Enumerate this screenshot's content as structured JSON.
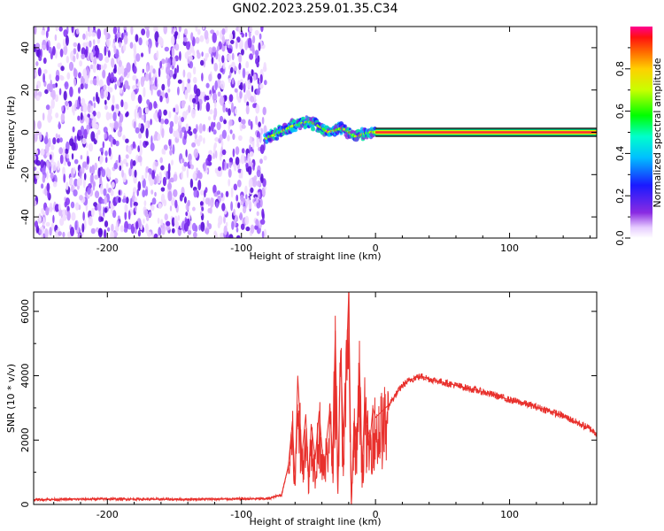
{
  "title": "GN02.2023.259.01.35.C34",
  "chart_data": [
    {
      "type": "heatmap",
      "xlabel": "Height of straight line (km)",
      "ylabel": "Frequency (Hz)",
      "xlim": [
        -255,
        165
      ],
      "ylim": [
        -50,
        50
      ],
      "xticks": [
        -200,
        -100,
        0,
        100
      ],
      "yticks": [
        -40,
        -20,
        0,
        20,
        40
      ],
      "colorbar": {
        "label": "Normalized spectral amplitude",
        "range": [
          0,
          1
        ],
        "ticks": [
          0.0,
          0.2,
          0.4,
          0.6,
          0.8
        ],
        "colormap": "rainbow"
      },
      "noise_region_x": [
        -255,
        -82
      ],
      "tone_track": {
        "x": [
          -82,
          -75,
          -68,
          -62,
          -56,
          -50,
          -45,
          -40,
          -35,
          -30,
          -25,
          -20,
          -15,
          -10,
          -5,
          0,
          165
        ],
        "frequency": [
          -3,
          -1,
          1,
          3,
          4,
          5,
          4,
          2,
          0,
          1,
          2,
          0,
          -2,
          -1,
          0,
          0,
          0
        ]
      }
    },
    {
      "type": "line",
      "xlabel": "Height of straight line (km)",
      "ylabel": "SNR (10 * v/v)",
      "xlim": [
        -255,
        165
      ],
      "ylim": [
        0,
        6600
      ],
      "xticks": [
        -200,
        -100,
        0,
        100
      ],
      "yticks": [
        0,
        2000,
        4000,
        6000
      ],
      "color": "#e8302c",
      "series": [
        {
          "x": [
            -255,
            -200,
            -150,
            -100,
            -80,
            -70,
            -65,
            -62,
            -60,
            -58,
            -55,
            -52,
            -50,
            -48,
            -45,
            -42,
            -40,
            -38,
            -36,
            -34,
            -32,
            -30,
            -28,
            -26,
            -24,
            -22,
            -20,
            -18,
            -16,
            -14,
            -12,
            -10,
            -8,
            -6,
            -4,
            -2,
            0,
            5,
            10,
            15,
            20,
            25,
            30,
            35,
            40,
            50,
            60,
            70,
            80,
            90,
            100,
            110,
            120,
            130,
            140,
            150,
            160,
            165
          ],
          "y": [
            150,
            170,
            160,
            170,
            180,
            300,
            1200,
            2600,
            600,
            4000,
            1500,
            2800,
            800,
            2500,
            1400,
            2900,
            1800,
            1100,
            2200,
            3000,
            1400,
            5400,
            800,
            4800,
            2100,
            4000,
            6600,
            0,
            2600,
            1800,
            4400,
            1100,
            3200,
            2400,
            2000,
            3000,
            2700,
            2900,
            3100,
            3400,
            3700,
            3850,
            3950,
            3980,
            3900,
            3800,
            3700,
            3600,
            3500,
            3380,
            3250,
            3150,
            3030,
            2900,
            2750,
            2550,
            2350,
            2200
          ]
        }
      ]
    }
  ]
}
